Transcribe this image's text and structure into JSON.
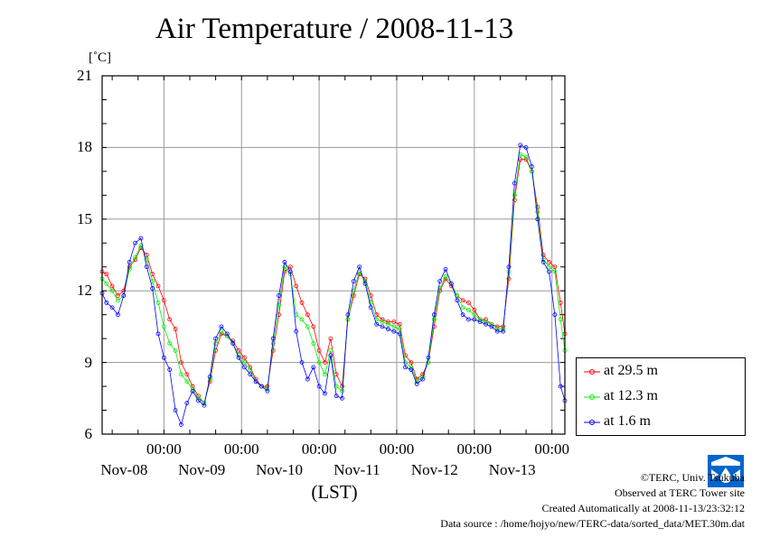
{
  "title": "Air Temperature / 2008-11-13",
  "unit": "[˚C]",
  "xlabel": "(LST)",
  "colors": {
    "s1": "#ff0000",
    "s2": "#00ee00",
    "s3": "#0000ff",
    "logo": "#0066cc"
  },
  "legend": [
    "at 29.5 m",
    "at 12.3 m",
    "at 1.6 m"
  ],
  "footer": {
    "copyright": "©TERC, Univ. Tsukuba",
    "observed": "Observed at TERC Tower site",
    "created": "Created Automatically at 2008-11-13/23:32:12",
    "source": "Data source : /home/hojyo/new/TERC-data/sorted_data/MET.30m.dat"
  },
  "logo_text": "TERC",
  "chart_data": {
    "type": "line",
    "title": "Air Temperature / 2008-11-13",
    "ylabel": "[˚C]",
    "xlabel": "(LST)",
    "ylim": [
      6,
      21
    ],
    "yticks": [
      "6",
      "9",
      "12",
      "15",
      "18",
      "21"
    ],
    "xlim_hours": [
      -21.5,
      139.5
    ],
    "xticks": [
      {
        "time": "00:00",
        "date": "Nov-08",
        "h": 0
      },
      {
        "time": "00:00",
        "date": "Nov-09",
        "h": 27
      },
      {
        "time": "00:00",
        "date": "Nov-10",
        "h": 54
      },
      {
        "time": "00:00",
        "date": "Nov-11",
        "h": 81
      },
      {
        "time": "00:00",
        "date": "Nov-12",
        "h": 108
      },
      {
        "time": "00:00",
        "date": "Nov-13",
        "h": 135
      }
    ],
    "grid": true,
    "legend_position": "right",
    "x_hours": [
      -21.5,
      -20,
      -18,
      -16,
      -14,
      -12,
      -10,
      -8,
      -6,
      -4,
      -2,
      0,
      2,
      4,
      6,
      8,
      10,
      12,
      14,
      16,
      18,
      20,
      22,
      24,
      26,
      28,
      30,
      32,
      34,
      36,
      38,
      40,
      42,
      44,
      46,
      48,
      50,
      52,
      54,
      56,
      58,
      60,
      62,
      64,
      66,
      68,
      70,
      72,
      74,
      76,
      78,
      80,
      82,
      84,
      86,
      88,
      90,
      92,
      94,
      96,
      98,
      100,
      102,
      104,
      106,
      108,
      110,
      112,
      114,
      116,
      118,
      120,
      122,
      124,
      126,
      128,
      130,
      132,
      134,
      136,
      138,
      139.5
    ],
    "series": [
      {
        "name": "at 29.5 m",
        "color": "#ff0000",
        "values": [
          12.8,
          12.7,
          12.2,
          11.8,
          12.0,
          13.0,
          13.3,
          13.8,
          13.5,
          12.7,
          12.2,
          11.6,
          10.8,
          10.4,
          9.0,
          8.5,
          8.0,
          7.6,
          7.3,
          8.2,
          9.5,
          10.2,
          10.1,
          9.9,
          9.5,
          9.2,
          8.8,
          8.3,
          8.0,
          8.0,
          9.5,
          11.0,
          12.8,
          13.0,
          12.2,
          11.5,
          11.0,
          10.5,
          9.5,
          9.0,
          10.0,
          8.5,
          8.0,
          10.8,
          11.8,
          12.7,
          12.5,
          11.8,
          11.0,
          10.8,
          10.7,
          10.7,
          10.6,
          9.3,
          9.0,
          8.3,
          8.5,
          9.0,
          10.5,
          12.0,
          12.5,
          12.2,
          11.8,
          11.6,
          11.5,
          11.2,
          10.8,
          10.8,
          10.6,
          10.5,
          10.5,
          12.5,
          15.8,
          17.5,
          17.5,
          17.0,
          15.5,
          13.5,
          13.2,
          13.0,
          11.5,
          10.2
        ]
      },
      {
        "name": "at 12.3 m",
        "color": "#00ee00",
        "values": [
          12.5,
          12.3,
          12.0,
          11.6,
          11.8,
          12.9,
          13.4,
          13.9,
          13.3,
          12.4,
          11.5,
          10.5,
          9.8,
          9.5,
          8.5,
          8.2,
          7.9,
          7.5,
          7.3,
          8.3,
          9.8,
          10.3,
          10.1,
          9.8,
          9.3,
          9.0,
          8.7,
          8.2,
          8.0,
          7.9,
          9.8,
          11.4,
          13.0,
          12.7,
          11.0,
          10.8,
          10.5,
          9.8,
          9.0,
          8.5,
          9.5,
          8.0,
          7.8,
          10.8,
          12.0,
          12.8,
          12.4,
          11.5,
          10.8,
          10.7,
          10.6,
          10.5,
          10.4,
          9.0,
          8.8,
          8.2,
          8.4,
          9.0,
          10.8,
          12.1,
          12.6,
          12.3,
          11.8,
          11.3,
          11.2,
          11.0,
          10.8,
          10.7,
          10.6,
          10.4,
          10.4,
          12.8,
          16.0,
          17.7,
          17.6,
          17.0,
          15.3,
          13.3,
          13.0,
          12.8,
          10.8,
          9.5
        ]
      },
      {
        "name": "at 1.6 m",
        "color": "#0000ff",
        "values": [
          11.9,
          11.5,
          11.3,
          11.0,
          11.8,
          13.2,
          14.0,
          14.2,
          13.0,
          12.1,
          10.2,
          9.2,
          8.7,
          7.0,
          6.4,
          7.3,
          7.8,
          7.4,
          7.2,
          8.4,
          10.0,
          10.5,
          10.2,
          9.8,
          9.2,
          8.8,
          8.5,
          8.2,
          8.0,
          7.8,
          10.0,
          11.8,
          13.2,
          12.8,
          10.3,
          9.0,
          8.3,
          8.8,
          8.0,
          7.7,
          9.3,
          7.6,
          7.5,
          11.0,
          12.4,
          13.0,
          12.3,
          11.3,
          10.6,
          10.5,
          10.4,
          10.3,
          10.2,
          8.8,
          8.7,
          8.1,
          8.3,
          9.2,
          11.0,
          12.4,
          12.9,
          12.3,
          11.6,
          11.0,
          10.8,
          10.8,
          10.7,
          10.6,
          10.5,
          10.3,
          10.3,
          13.0,
          16.5,
          18.1,
          18.0,
          17.2,
          15.0,
          13.2,
          12.8,
          11.0,
          8.0,
          7.4
        ]
      }
    ]
  }
}
